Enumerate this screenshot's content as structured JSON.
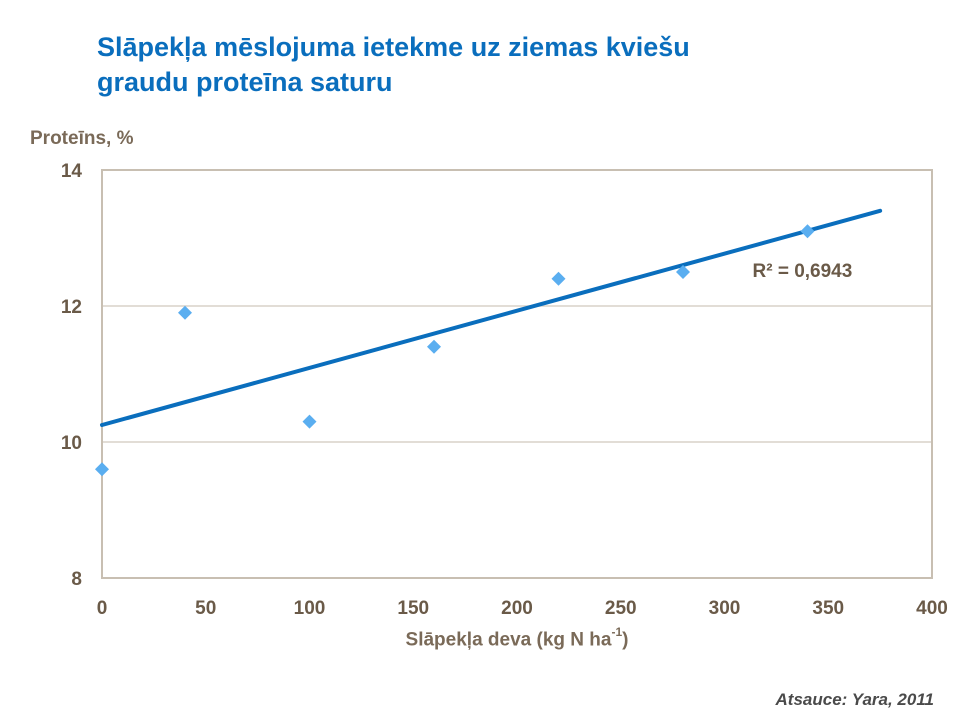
{
  "title_line1": "Slāpekļa mēslojuma ietekme uz ziemas kviešu",
  "title_line2": "graudu proteīna saturu",
  "source": "Atsauce: Yara, 2011",
  "colors": {
    "title": "#0a6ebd",
    "axis_text": "#7a6a58",
    "points": "#5aaef0",
    "trendline": "#0a6ebd",
    "grid": "#d9d2c8",
    "plot_border": "#c8bfb2"
  },
  "chart_data": {
    "type": "scatter",
    "xlabel_main": "Slāpekļa deva (kg N ha",
    "xlabel_sup": "-1",
    "xlabel_end": ")",
    "ylabel": "Proteīns, %",
    "xlim": [
      0,
      400
    ],
    "ylim": [
      8,
      14
    ],
    "xticks": [
      0,
      50,
      100,
      150,
      200,
      250,
      300,
      350,
      400
    ],
    "yticks": [
      8,
      10,
      12,
      14
    ],
    "grid": "horizontal",
    "points": [
      {
        "x": 0,
        "y": 9.6
      },
      {
        "x": 40,
        "y": 11.9
      },
      {
        "x": 100,
        "y": 10.3
      },
      {
        "x": 160,
        "y": 11.4
      },
      {
        "x": 220,
        "y": 12.4
      },
      {
        "x": 280,
        "y": 12.5
      },
      {
        "x": 340,
        "y": 13.1
      }
    ],
    "trendline": {
      "type": "linear",
      "x_start": 0,
      "x_end": 375,
      "y_start": 10.25,
      "y_end": 13.4
    },
    "r2_label": "R² = 0,6943",
    "r2_anchor": {
      "x": 300,
      "y": 12.4
    }
  }
}
